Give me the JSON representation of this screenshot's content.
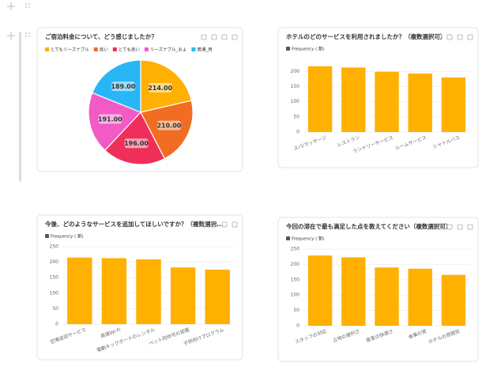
{
  "chart_data": [
    {
      "type": "pie",
      "title": "ご宿泊料金について、どう感じましたか？",
      "categories": [
        "とてもリーズナブル",
        "高い",
        "とても高い",
        "リーズナブル_およ",
        "普通_用"
      ],
      "values": [
        214,
        210,
        196,
        191,
        189
      ],
      "value_labels": [
        "214.00",
        "210.00",
        "196.00",
        "191.00",
        "189.00"
      ],
      "colors": [
        "#ffb000",
        "#f26c22",
        "#ef2f5a",
        "#f25bc6",
        "#29b6f6"
      ]
    },
    {
      "type": "bar",
      "title": "ホテルのどのサービスを利用されましたか？（複数選択可）",
      "categories": [
        "スパ/マッサージ",
        "レストラン",
        "ランドリーサービス",
        "ルームサービス",
        "シャトルバス"
      ],
      "series": [
        {
          "name": "Frequency ( 割)",
          "color": "#ffb000",
          "values": [
            217,
            213,
            199,
            193,
            180
          ]
        }
      ],
      "ylim": [
        0,
        240
      ],
      "yticks": [
        0,
        50,
        100,
        150,
        200
      ],
      "grid": true
    },
    {
      "type": "bar",
      "title": "今後、どのようなサービスを追加してほしいですか？（複数選択...",
      "categories": [
        "空港送迎サービス",
        "高速Wi-Fi",
        "電動キックボードのレンタル",
        "ペット同伴可の部屋",
        "子供向けプログラム"
      ],
      "series": [
        {
          "name": "Frequency ( 割)",
          "color": "#ffb000",
          "values": [
            215,
            213,
            209,
            183,
            176
          ]
        }
      ],
      "ylim": [
        0,
        250
      ],
      "yticks": [
        0,
        50,
        100,
        150,
        200,
        250
      ],
      "grid": true
    },
    {
      "type": "bar",
      "title": "今回の滞在で最も満足した点を教えてください（複数選択可）",
      "categories": [
        "スタッフの対応",
        "立地の便利さ",
        "客室の快適さ",
        "食事の質",
        "ホテルの雰囲気"
      ],
      "series": [
        {
          "name": "Frequency ( 割)",
          "color": "#ffb000",
          "values": [
            229,
            223,
            190,
            186,
            166
          ]
        }
      ],
      "ylim": [
        0,
        250
      ],
      "yticks": [
        0,
        50,
        100,
        150,
        200,
        250
      ],
      "grid": true
    }
  ]
}
